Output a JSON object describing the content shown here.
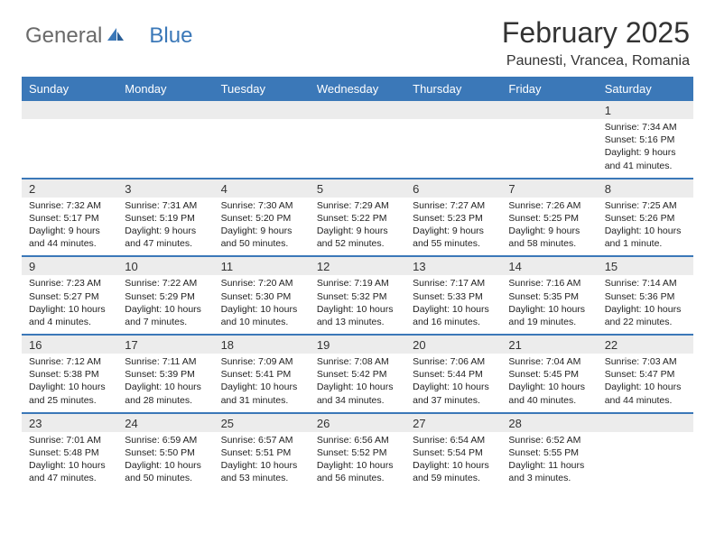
{
  "logo": {
    "text1": "General",
    "text2": "Blue"
  },
  "title": "February 2025",
  "location": "Paunesti, Vrancea, Romania",
  "colors": {
    "header_bg": "#3b78b8",
    "header_text": "#ffffff",
    "daynum_bg": "#ececec",
    "border": "#3b78b8",
    "logo_gray": "#6a6a6a",
    "logo_blue": "#3b78b8"
  },
  "day_names": [
    "Sunday",
    "Monday",
    "Tuesday",
    "Wednesday",
    "Thursday",
    "Friday",
    "Saturday"
  ],
  "weeks": [
    [
      {
        "n": "",
        "d": ""
      },
      {
        "n": "",
        "d": ""
      },
      {
        "n": "",
        "d": ""
      },
      {
        "n": "",
        "d": ""
      },
      {
        "n": "",
        "d": ""
      },
      {
        "n": "",
        "d": ""
      },
      {
        "n": "1",
        "d": "Sunrise: 7:34 AM\nSunset: 5:16 PM\nDaylight: 9 hours and 41 minutes."
      }
    ],
    [
      {
        "n": "2",
        "d": "Sunrise: 7:32 AM\nSunset: 5:17 PM\nDaylight: 9 hours and 44 minutes."
      },
      {
        "n": "3",
        "d": "Sunrise: 7:31 AM\nSunset: 5:19 PM\nDaylight: 9 hours and 47 minutes."
      },
      {
        "n": "4",
        "d": "Sunrise: 7:30 AM\nSunset: 5:20 PM\nDaylight: 9 hours and 50 minutes."
      },
      {
        "n": "5",
        "d": "Sunrise: 7:29 AM\nSunset: 5:22 PM\nDaylight: 9 hours and 52 minutes."
      },
      {
        "n": "6",
        "d": "Sunrise: 7:27 AM\nSunset: 5:23 PM\nDaylight: 9 hours and 55 minutes."
      },
      {
        "n": "7",
        "d": "Sunrise: 7:26 AM\nSunset: 5:25 PM\nDaylight: 9 hours and 58 minutes."
      },
      {
        "n": "8",
        "d": "Sunrise: 7:25 AM\nSunset: 5:26 PM\nDaylight: 10 hours and 1 minute."
      }
    ],
    [
      {
        "n": "9",
        "d": "Sunrise: 7:23 AM\nSunset: 5:27 PM\nDaylight: 10 hours and 4 minutes."
      },
      {
        "n": "10",
        "d": "Sunrise: 7:22 AM\nSunset: 5:29 PM\nDaylight: 10 hours and 7 minutes."
      },
      {
        "n": "11",
        "d": "Sunrise: 7:20 AM\nSunset: 5:30 PM\nDaylight: 10 hours and 10 minutes."
      },
      {
        "n": "12",
        "d": "Sunrise: 7:19 AM\nSunset: 5:32 PM\nDaylight: 10 hours and 13 minutes."
      },
      {
        "n": "13",
        "d": "Sunrise: 7:17 AM\nSunset: 5:33 PM\nDaylight: 10 hours and 16 minutes."
      },
      {
        "n": "14",
        "d": "Sunrise: 7:16 AM\nSunset: 5:35 PM\nDaylight: 10 hours and 19 minutes."
      },
      {
        "n": "15",
        "d": "Sunrise: 7:14 AM\nSunset: 5:36 PM\nDaylight: 10 hours and 22 minutes."
      }
    ],
    [
      {
        "n": "16",
        "d": "Sunrise: 7:12 AM\nSunset: 5:38 PM\nDaylight: 10 hours and 25 minutes."
      },
      {
        "n": "17",
        "d": "Sunrise: 7:11 AM\nSunset: 5:39 PM\nDaylight: 10 hours and 28 minutes."
      },
      {
        "n": "18",
        "d": "Sunrise: 7:09 AM\nSunset: 5:41 PM\nDaylight: 10 hours and 31 minutes."
      },
      {
        "n": "19",
        "d": "Sunrise: 7:08 AM\nSunset: 5:42 PM\nDaylight: 10 hours and 34 minutes."
      },
      {
        "n": "20",
        "d": "Sunrise: 7:06 AM\nSunset: 5:44 PM\nDaylight: 10 hours and 37 minutes."
      },
      {
        "n": "21",
        "d": "Sunrise: 7:04 AM\nSunset: 5:45 PM\nDaylight: 10 hours and 40 minutes."
      },
      {
        "n": "22",
        "d": "Sunrise: 7:03 AM\nSunset: 5:47 PM\nDaylight: 10 hours and 44 minutes."
      }
    ],
    [
      {
        "n": "23",
        "d": "Sunrise: 7:01 AM\nSunset: 5:48 PM\nDaylight: 10 hours and 47 minutes."
      },
      {
        "n": "24",
        "d": "Sunrise: 6:59 AM\nSunset: 5:50 PM\nDaylight: 10 hours and 50 minutes."
      },
      {
        "n": "25",
        "d": "Sunrise: 6:57 AM\nSunset: 5:51 PM\nDaylight: 10 hours and 53 minutes."
      },
      {
        "n": "26",
        "d": "Sunrise: 6:56 AM\nSunset: 5:52 PM\nDaylight: 10 hours and 56 minutes."
      },
      {
        "n": "27",
        "d": "Sunrise: 6:54 AM\nSunset: 5:54 PM\nDaylight: 10 hours and 59 minutes."
      },
      {
        "n": "28",
        "d": "Sunrise: 6:52 AM\nSunset: 5:55 PM\nDaylight: 11 hours and 3 minutes."
      },
      {
        "n": "",
        "d": ""
      }
    ]
  ]
}
